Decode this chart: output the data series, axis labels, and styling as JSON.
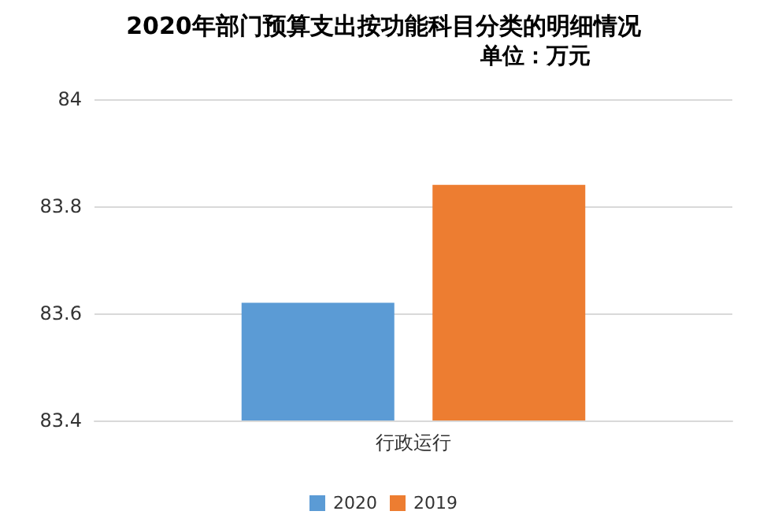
{
  "chart_data": {
    "type": "bar",
    "title": "2020年部门预算支出按功能科目分类的明细情况",
    "subtitle": "单位：万元",
    "categories": [
      "行政运行"
    ],
    "series": [
      {
        "name": "2020",
        "color": "#5b9bd5",
        "values": [
          83.62
        ]
      },
      {
        "name": "2019",
        "color": "#ed7d31",
        "values": [
          83.84
        ]
      }
    ],
    "ylim": [
      83.4,
      84
    ],
    "yticks": [
      83.4,
      83.6,
      83.8,
      84
    ],
    "grid": "y",
    "legend": "bottom"
  }
}
